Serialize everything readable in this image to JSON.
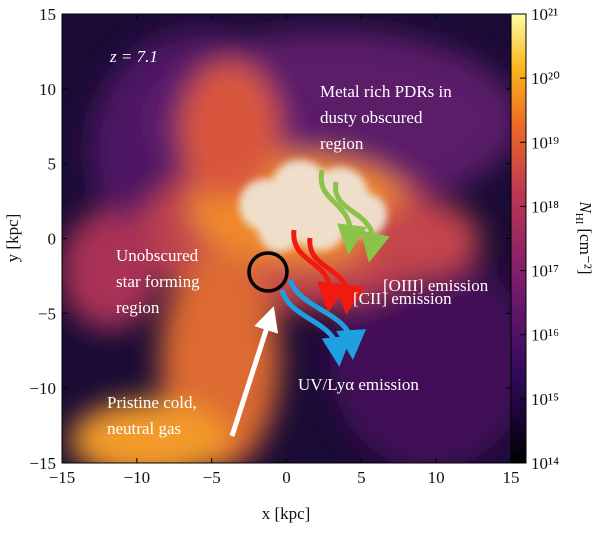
{
  "chart_data": {
    "type": "image",
    "xlabel": "x [kpc]",
    "ylabel": "y [kpc]",
    "xlim": [
      -15,
      15
    ],
    "ylim": [
      -15,
      15
    ],
    "xticks": [
      {
        "value": -15,
        "label": "−15"
      },
      {
        "value": -10,
        "label": "−10"
      },
      {
        "value": -5,
        "label": "−5"
      },
      0,
      5,
      10,
      15
    ],
    "yticks": [
      {
        "value": -15,
        "label": "−15"
      },
      {
        "value": -10,
        "label": "−10"
      },
      {
        "value": -5,
        "label": "−5"
      },
      0,
      5,
      10,
      15
    ],
    "colorbar": {
      "label": {
        "symbol": "N",
        "subscript": "HI",
        "unit": "[cm⁻²]"
      },
      "log_scale": true,
      "clim": [
        100000000000000.0,
        1e+21
      ],
      "ticks": [
        {
          "value": 100000000000000.0,
          "label": "10¹⁴"
        },
        {
          "value": 1000000000000000.0,
          "label": "10¹⁵"
        },
        {
          "value": 1e+16,
          "label": "10¹⁶"
        },
        {
          "value": 1e+17,
          "label": "10¹⁷"
        },
        {
          "value": 1e+18,
          "label": "10¹⁸"
        },
        {
          "value": 1e+19,
          "label": "10¹⁹"
        },
        {
          "value": 1e+20,
          "label": "10²⁰"
        },
        {
          "value": 1e+21,
          "label": "10²¹"
        }
      ]
    },
    "annotations": [
      {
        "lines": [
          "z = 7.1"
        ]
      },
      {
        "lines": [
          "Metal rich PDRs in",
          "dusty obscured",
          "region"
        ]
      },
      {
        "lines": [
          "Unobscured",
          "star forming",
          "region"
        ]
      },
      {
        "lines": [
          "Pristine cold,",
          "neutral gas"
        ]
      },
      {
        "lines": [
          "[OIII] emission"
        ]
      },
      {
        "lines": [
          "[CII] emission"
        ]
      },
      {
        "lines": [
          "UV/Lyα emission"
        ]
      }
    ]
  }
}
